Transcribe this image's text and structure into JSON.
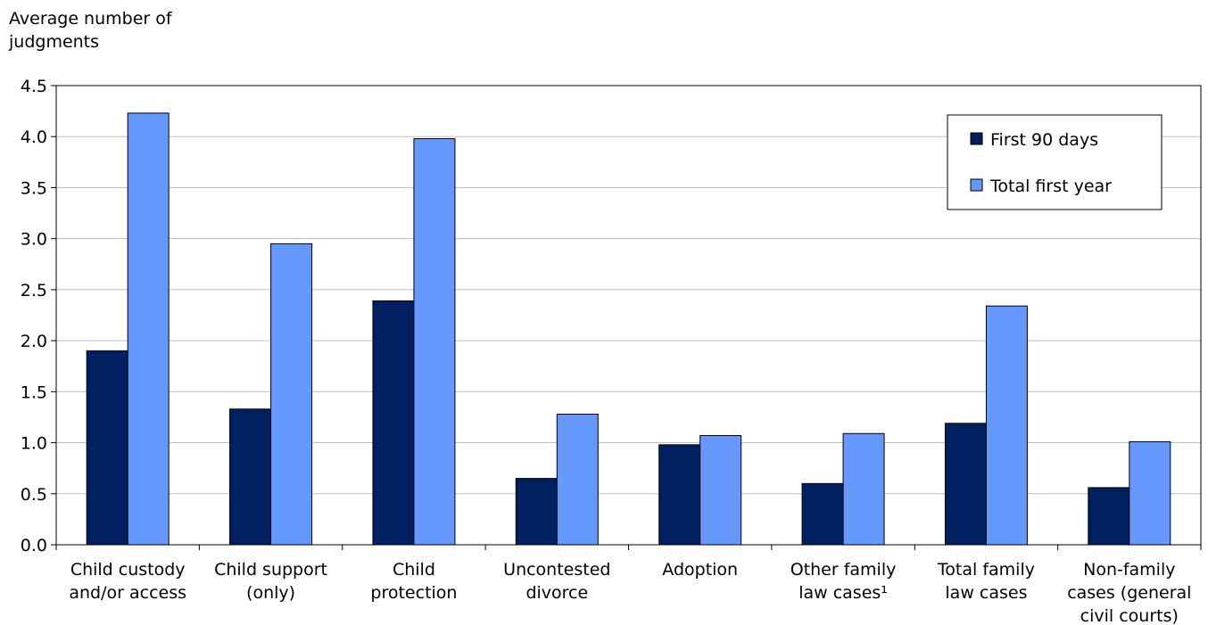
{
  "chart_data": {
    "type": "bar",
    "title": "",
    "ylabel": "Average number of\njudgments",
    "xlabel": "",
    "ylim": [
      0,
      4.5
    ],
    "yticks": [
      "0.0",
      "0.5",
      "1.0",
      "1.5",
      "2.0",
      "2.5",
      "3.0",
      "3.5",
      "4.0",
      "4.5"
    ],
    "grid": true,
    "legend_position": "top-right",
    "categories": [
      [
        "Child custody",
        "and/or access"
      ],
      [
        "Child support",
        "(only)"
      ],
      [
        "Child",
        "protection"
      ],
      [
        "Uncontested",
        "divorce"
      ],
      [
        "Adoption"
      ],
      [
        "Other family",
        "law cases¹"
      ],
      [
        "Total family",
        "law cases"
      ],
      [
        "Non-family",
        "cases (general",
        "civil courts)"
      ]
    ],
    "series": [
      {
        "name": "First 90 days",
        "color": "#002060",
        "values": [
          1.9,
          1.33,
          2.39,
          0.65,
          0.98,
          0.6,
          1.19,
          0.56
        ]
      },
      {
        "name": "Total first year",
        "color": "#6699ff",
        "values": [
          4.23,
          2.95,
          3.98,
          1.28,
          1.07,
          1.09,
          2.34,
          1.01
        ]
      }
    ]
  }
}
